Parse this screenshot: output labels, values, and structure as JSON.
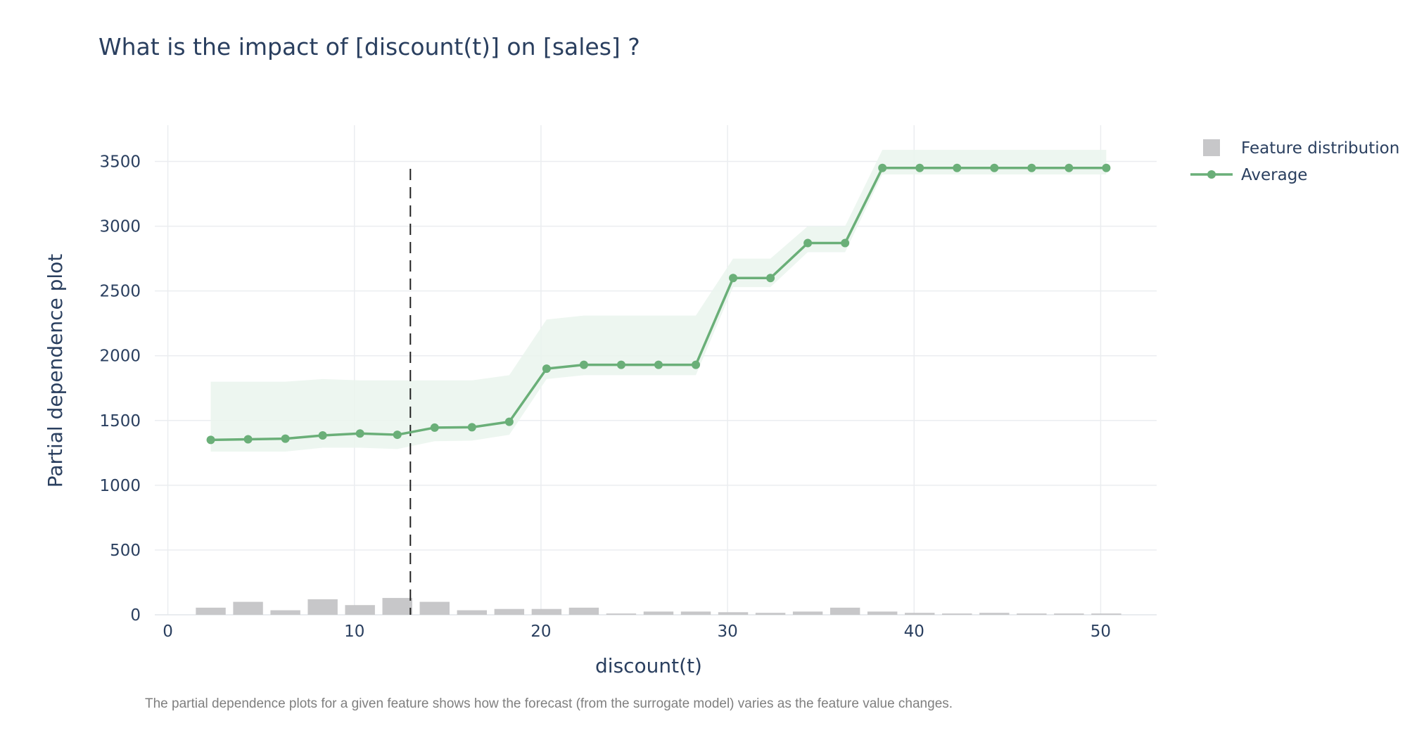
{
  "chart_data": {
    "type": "line",
    "title": "What is the impact of [discount(t)] on [sales] ?",
    "xlabel": "discount(t)",
    "ylabel": "Partial dependence plot",
    "caption": "The partial dependence plots for a given feature shows how the forecast  (from the surrogate model) varies as the feature value changes.",
    "xlim": [
      -0.7,
      53
    ],
    "ylim": [
      0,
      3780
    ],
    "x_ticks": [
      0,
      10,
      20,
      30,
      40,
      50
    ],
    "x_tick_labels": [
      "0",
      "10",
      "20",
      "30",
      "40",
      "50"
    ],
    "y_ticks": [
      0,
      500,
      1000,
      1500,
      2000,
      2500,
      3000,
      3500
    ],
    "y_tick_labels": [
      "0",
      "500",
      "1000",
      "1500",
      "2000",
      "2500",
      "3000",
      "3500"
    ],
    "grid": true,
    "legend_position": "top-right",
    "reference_line_x": 13,
    "series": [
      {
        "name": "Average",
        "color": "#6aaf78",
        "x": [
          2.3,
          4.3,
          6.3,
          8.3,
          10.3,
          12.3,
          14.3,
          16.3,
          18.3,
          20.3,
          22.3,
          24.3,
          26.3,
          28.3,
          30.3,
          32.3,
          34.3,
          36.3,
          38.3,
          40.3,
          42.3,
          44.3,
          46.3,
          48.3,
          50.3
        ],
        "values": [
          1350,
          1355,
          1360,
          1385,
          1400,
          1390,
          1445,
          1448,
          1490,
          1900,
          1930,
          1930,
          1930,
          1930,
          2600,
          2600,
          2870,
          2870,
          3450,
          3450,
          3450,
          3450,
          3450,
          3450,
          3450
        ]
      },
      {
        "name": "Confidence band",
        "color": "#eaf5ed",
        "x": [
          2.3,
          4.3,
          6.3,
          8.3,
          10.3,
          12.3,
          14.3,
          16.3,
          18.3,
          20.3,
          22.3,
          24.3,
          26.3,
          28.3,
          30.3,
          32.3,
          34.3,
          36.3,
          38.3,
          40.3,
          42.3,
          44.3,
          46.3,
          48.3,
          50.3
        ],
        "upper": [
          1800,
          1800,
          1800,
          1820,
          1810,
          1810,
          1810,
          1810,
          1850,
          2280,
          2310,
          2310,
          2310,
          2310,
          2750,
          2750,
          3000,
          3000,
          3590,
          3590,
          3590,
          3590,
          3590,
          3590,
          3590
        ],
        "lower": [
          1260,
          1260,
          1260,
          1290,
          1290,
          1280,
          1340,
          1345,
          1390,
          1820,
          1850,
          1850,
          1850,
          1850,
          2530,
          2530,
          2800,
          2800,
          3400,
          3400,
          3400,
          3400,
          3400,
          3400,
          3400
        ]
      },
      {
        "name": "Feature distribution",
        "color": "#c7c7c9",
        "x": [
          2.3,
          4.3,
          6.3,
          8.3,
          10.3,
          12.3,
          14.3,
          16.3,
          18.3,
          20.3,
          22.3,
          24.3,
          26.3,
          28.3,
          30.3,
          32.3,
          34.3,
          36.3,
          38.3,
          40.3,
          42.3,
          44.3,
          46.3,
          48.3,
          50.3
        ],
        "values": [
          55,
          100,
          35,
          120,
          75,
          130,
          100,
          35,
          45,
          45,
          55,
          10,
          25,
          25,
          20,
          15,
          25,
          55,
          25,
          15,
          10,
          15,
          10,
          10,
          10
        ]
      }
    ],
    "legend": [
      {
        "label": "Feature distribution",
        "kind": "bar-square",
        "color": "#c7c7c9"
      },
      {
        "label": "Average",
        "kind": "line-marker",
        "color": "#6aaf78"
      }
    ]
  }
}
